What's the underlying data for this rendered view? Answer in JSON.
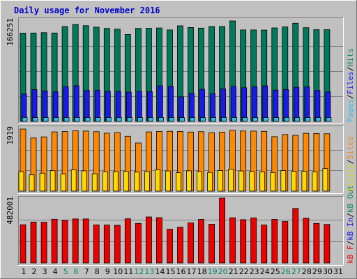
{
  "chart_data": {
    "type": "bar",
    "title": "Daily usage for November 2016",
    "categories": [
      "1",
      "2",
      "3",
      "4",
      "5",
      "6",
      "7",
      "8",
      "9",
      "10",
      "11",
      "12",
      "13",
      "14",
      "15",
      "16",
      "17",
      "18",
      "19",
      "20",
      "21",
      "22",
      "23",
      "24",
      "25",
      "26",
      "27",
      "28",
      "29",
      "30",
      "31"
    ],
    "weekend_days": [
      "5",
      "6",
      "12",
      "13",
      "19",
      "20",
      "26",
      "27"
    ],
    "grid": true,
    "panels": [
      {
        "id": "top",
        "ylabel_max": "166251",
        "ylim": [
          0,
          166251
        ],
        "legend": [
          {
            "label": "Pages",
            "color": "#33bbee"
          },
          {
            "label": "/",
            "color": "#000000"
          },
          {
            "label": "Files",
            "color": "#1a1aee"
          },
          {
            "label": "/",
            "color": "#000000"
          },
          {
            "label": "Hits",
            "color": "#118866"
          }
        ],
        "series": [
          {
            "name": "Hits",
            "color": "#007a5a",
            "values": [
              146100,
              146300,
              146900,
              146300,
              157000,
              160400,
              158400,
              156000,
              153900,
              152600,
              143900,
              153900,
              154000,
              154600,
              151400,
              158200,
              155400,
              154400,
              157000,
              157100,
              166300,
              151400,
              151400,
              151100,
              154700,
              156400,
              162400,
              155100,
              151700,
              151700,
              null
            ]
          },
          {
            "name": "Files",
            "color": "#1a1aee",
            "values": [
              45100,
              52500,
              50300,
              48800,
              57500,
              58900,
              51100,
              51600,
              49600,
              49700,
              48400,
              49600,
              49200,
              58900,
              57900,
              40600,
              46300,
              53000,
              45700,
              53700,
              57700,
              55600,
              57400,
              58800,
              51700,
              52700,
              56500,
              57100,
              51200,
              48600,
              null
            ]
          },
          {
            "name": "Pages",
            "color": "#33bbee",
            "values": [
              6500,
              6400,
              6400,
              6400,
              6300,
              6400,
              6400,
              6300,
              6400,
              6400,
              6300,
              6300,
              6400,
              6500,
              6300,
              6200,
              6400,
              6400,
              6400,
              6500,
              6400,
              6400,
              6400,
              6400,
              6400,
              6500,
              6400,
              6400,
              6400,
              6400,
              null
            ]
          }
        ]
      },
      {
        "id": "middle",
        "ylabel_max": "1919",
        "ylim": [
          0,
          1919
        ],
        "legend": [
          {
            "label": "Visits",
            "color": "#dddd00"
          },
          {
            "label": "/",
            "color": "#000000"
          },
          {
            "label": "Sites",
            "color": "#ee8822"
          }
        ],
        "series": [
          {
            "name": "Sites",
            "color": "#ff8800",
            "values": [
              1919,
              1644,
              1678,
              1831,
              1842,
              1865,
              1856,
              1837,
              1792,
              1810,
              1697,
              1488,
              1831,
              1844,
              1851,
              1845,
              1827,
              1837,
              1805,
              1825,
              1880,
              1859,
              1857,
              1848,
              1683,
              1748,
              1724,
              1787,
              1781,
              1772,
              null
            ]
          },
          {
            "name": "Visits",
            "color": "#ffd800",
            "values": [
              599,
              503,
              555,
              632,
              533,
              655,
              627,
              534,
              601,
              602,
              609,
              588,
              605,
              663,
              624,
              569,
              627,
              609,
              578,
              637,
              679,
              624,
              606,
              591,
              575,
              637,
              612,
              612,
              596,
              696,
              null
            ]
          }
        ]
      },
      {
        "id": "bottom",
        "ylabel_max": "482001",
        "ylim": [
          0,
          482001
        ],
        "legend": [
          {
            "label": "kB F",
            "color": "#ee1111"
          },
          {
            "label": "/",
            "color": "#000000"
          },
          {
            "label": "kB In",
            "color": "#1a1aee"
          },
          {
            "label": "/",
            "color": "#000000"
          },
          {
            "label": "kB Out",
            "color": "#118866"
          }
        ],
        "series": [
          {
            "name": "kB F",
            "color": "#ee0000",
            "values": [
              284000,
              304000,
              303000,
              325000,
              317000,
              327000,
              327000,
              283000,
              282000,
              280000,
              328000,
              294000,
              342000,
              337000,
              251000,
              266000,
              298000,
              324000,
              288000,
              482001,
              336000,
              322000,
              335000,
              282000,
              324000,
              308000,
              405000,
              332000,
              294000,
              286000,
              null
            ]
          }
        ]
      }
    ]
  }
}
